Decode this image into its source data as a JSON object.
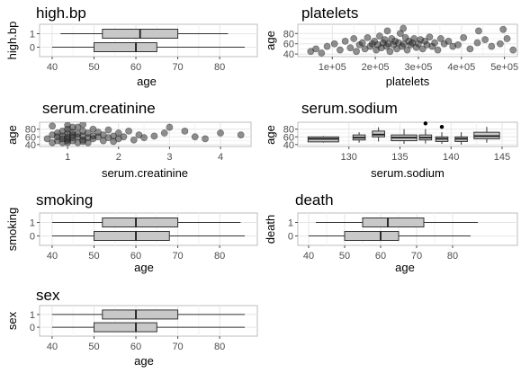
{
  "chart_data": [
    {
      "title": "high.bp",
      "type": "boxplot",
      "orientation": "horizontal",
      "xlabel": "age",
      "ylabel": "high.bp",
      "xlim": [
        37,
        89
      ],
      "xticks": [
        40,
        50,
        60,
        70,
        80
      ],
      "categories": [
        "0",
        "1"
      ],
      "boxes": [
        {
          "group": "0",
          "min": 40,
          "q1": 50,
          "median": 60,
          "q3": 65,
          "max": 86
        },
        {
          "group": "1",
          "min": 42,
          "q1": 52,
          "median": 61,
          "q3": 70,
          "max": 82
        }
      ]
    },
    {
      "title": "platelets",
      "type": "scatter",
      "xlabel": "platelets",
      "ylabel": "age",
      "xlim": [
        20000,
        530000
      ],
      "xticks": [
        100000,
        200000,
        300000,
        400000,
        500000
      ],
      "xtick_labels": [
        "1e+05",
        "2e+05",
        "3e+05",
        "4e+05",
        "5e+05"
      ],
      "ylim": [
        35,
        98
      ],
      "yticks": [
        40,
        60,
        80
      ],
      "points": [
        [
          50000,
          45
        ],
        [
          62000,
          50
        ],
        [
          75000,
          42
        ],
        [
          88000,
          55
        ],
        [
          105000,
          60
        ],
        [
          118000,
          48
        ],
        [
          130000,
          65
        ],
        [
          142000,
          52
        ],
        [
          150000,
          70
        ],
        [
          156000,
          45
        ],
        [
          163000,
          58
        ],
        [
          170000,
          62
        ],
        [
          176000,
          50
        ],
        [
          182000,
          72
        ],
        [
          188000,
          55
        ],
        [
          193000,
          60
        ],
        [
          198000,
          65
        ],
        [
          202000,
          48
        ],
        [
          206000,
          58
        ],
        [
          210000,
          75
        ],
        [
          214000,
          52
        ],
        [
          218000,
          62
        ],
        [
          222000,
          68
        ],
        [
          226000,
          55
        ],
        [
          230000,
          60
        ],
        [
          234000,
          45
        ],
        [
          238000,
          70
        ],
        [
          242000,
          58
        ],
        [
          246000,
          65
        ],
        [
          250000,
          50
        ],
        [
          254000,
          62
        ],
        [
          258000,
          80
        ],
        [
          262000,
          55
        ],
        [
          266000,
          60
        ],
        [
          270000,
          72
        ],
        [
          274000,
          48
        ],
        [
          278000,
          65
        ],
        [
          282000,
          58
        ],
        [
          286000,
          62
        ],
        [
          290000,
          70
        ],
        [
          295000,
          53
        ],
        [
          300000,
          60
        ],
        [
          305000,
          68
        ],
        [
          310000,
          50
        ],
        [
          315000,
          65
        ],
        [
          320000,
          58
        ],
        [
          326000,
          73
        ],
        [
          332000,
          55
        ],
        [
          338000,
          62
        ],
        [
          345000,
          48
        ],
        [
          352000,
          70
        ],
        [
          360000,
          60
        ],
        [
          370000,
          65
        ],
        [
          380000,
          55
        ],
        [
          392000,
          58
        ],
        [
          405000,
          72
        ],
        [
          420000,
          50
        ],
        [
          437000,
          62
        ],
        [
          455000,
          68
        ],
        [
          470000,
          55
        ],
        [
          490000,
          60
        ],
        [
          506000,
          70
        ],
        [
          520000,
          48
        ],
        [
          228000,
          85
        ],
        [
          265000,
          90
        ],
        [
          440000,
          85
        ],
        [
          497000,
          88
        ]
      ]
    },
    {
      "title": "serum.creatinine",
      "type": "scatter",
      "xlabel": "serum.creatinine",
      "ylabel": "age",
      "xlim": [
        0.45,
        4.6
      ],
      "xticks": [
        1,
        2,
        3,
        4
      ],
      "ylim": [
        35,
        98
      ],
      "yticks": [
        40,
        60,
        80
      ],
      "points": [
        [
          0.6,
          55
        ],
        [
          0.7,
          45
        ],
        [
          0.7,
          65
        ],
        [
          0.8,
          50
        ],
        [
          0.8,
          70
        ],
        [
          0.8,
          60
        ],
        [
          0.9,
          45
        ],
        [
          0.9,
          55
        ],
        [
          0.9,
          75
        ],
        [
          0.9,
          62
        ],
        [
          1.0,
          50
        ],
        [
          1.0,
          60
        ],
        [
          1.0,
          70
        ],
        [
          1.0,
          80
        ],
        [
          1.0,
          45
        ],
        [
          1.0,
          55
        ],
        [
          1.1,
          65
        ],
        [
          1.1,
          50
        ],
        [
          1.1,
          72
        ],
        [
          1.1,
          58
        ],
        [
          1.2,
          45
        ],
        [
          1.2,
          60
        ],
        [
          1.2,
          68
        ],
        [
          1.2,
          85
        ],
        [
          1.3,
          52
        ],
        [
          1.3,
          62
        ],
        [
          1.3,
          75
        ],
        [
          1.3,
          48
        ],
        [
          1.4,
          58
        ],
        [
          1.4,
          70
        ],
        [
          1.4,
          45
        ],
        [
          1.5,
          62
        ],
        [
          1.5,
          80
        ],
        [
          1.5,
          55
        ],
        [
          1.6,
          60
        ],
        [
          1.6,
          72
        ],
        [
          1.7,
          50
        ],
        [
          1.7,
          65
        ],
        [
          1.8,
          58
        ],
        [
          1.8,
          78
        ],
        [
          1.9,
          62
        ],
        [
          1.9,
          48
        ],
        [
          2.0,
          70
        ],
        [
          2.0,
          55
        ],
        [
          2.1,
          60
        ],
        [
          2.2,
          75
        ],
        [
          2.3,
          52
        ],
        [
          2.4,
          65
        ],
        [
          2.5,
          58
        ],
        [
          2.7,
          62
        ],
        [
          2.9,
          70
        ],
        [
          3.0,
          85
        ],
        [
          3.3,
          75
        ],
        [
          3.5,
          60
        ],
        [
          3.7,
          55
        ],
        [
          4.0,
          70
        ],
        [
          4.4,
          65
        ],
        [
          0.7,
          88
        ],
        [
          1.0,
          90
        ],
        [
          1.1,
          85
        ],
        [
          1.3,
          92
        ]
      ]
    },
    {
      "title": "serum.sodium",
      "type": "boxplot",
      "orientation": "vertical",
      "xlabel": "serum.sodium",
      "ylabel": "age",
      "xlim": [
        125,
        146.5
      ],
      "xticks": [
        130,
        135,
        140,
        145
      ],
      "ylim": [
        35,
        98
      ],
      "yticks": [
        40,
        60,
        80
      ],
      "boxes": [
        {
          "x": 127.5,
          "width": 3,
          "min": 45,
          "q1": 47,
          "median": 55,
          "q3": 60,
          "max": 62,
          "outliers": []
        },
        {
          "x": 131,
          "width": 1.2,
          "min": 45,
          "q1": 52,
          "median": 58,
          "q3": 65,
          "max": 72,
          "outliers": []
        },
        {
          "x": 132.9,
          "width": 1.2,
          "min": 48,
          "q1": 60,
          "median": 66,
          "q3": 75,
          "max": 85,
          "outliers": []
        },
        {
          "x": 135.4,
          "width": 2.5,
          "min": 42,
          "q1": 50,
          "median": 58,
          "q3": 65,
          "max": 80,
          "outliers": []
        },
        {
          "x": 137.5,
          "width": 1.2,
          "min": 43,
          "q1": 52,
          "median": 58,
          "q3": 65,
          "max": 80,
          "outliers": [
            95
          ]
        },
        {
          "x": 139.1,
          "width": 1.2,
          "min": 42,
          "q1": 48,
          "median": 55,
          "q3": 60,
          "max": 72,
          "outliers": [
            86
          ]
        },
        {
          "x": 141,
          "width": 1.2,
          "min": 40,
          "q1": 48,
          "median": 55,
          "q3": 60,
          "max": 72,
          "outliers": []
        },
        {
          "x": 143.5,
          "width": 2.5,
          "min": 45,
          "q1": 55,
          "median": 62,
          "q3": 72,
          "max": 86,
          "outliers": []
        }
      ]
    },
    {
      "title": "smoking",
      "type": "boxplot",
      "orientation": "horizontal",
      "xlabel": "age",
      "ylabel": "smoking",
      "xlim": [
        37,
        89
      ],
      "xticks": [
        40,
        50,
        60,
        70,
        80
      ],
      "categories": [
        "0",
        "1"
      ],
      "boxes": [
        {
          "group": "0",
          "min": 40,
          "q1": 50,
          "median": 60,
          "q3": 68,
          "max": 86
        },
        {
          "group": "1",
          "min": 40,
          "q1": 52,
          "median": 60,
          "q3": 70,
          "max": 85
        }
      ]
    },
    {
      "title": "death",
      "type": "boxplot",
      "orientation": "horizontal",
      "xlabel": "age",
      "ylabel": "death",
      "xlim": [
        37,
        98
      ],
      "xticks": [
        40,
        50,
        60,
        70,
        80
      ],
      "categories": [
        "0",
        "1"
      ],
      "boxes": [
        {
          "group": "0",
          "min": 40,
          "q1": 50,
          "median": 60,
          "q3": 65,
          "max": 85
        },
        {
          "group": "1",
          "min": 42,
          "q1": 55,
          "median": 62,
          "q3": 72,
          "max": 87
        }
      ]
    },
    {
      "title": "sex",
      "type": "boxplot",
      "orientation": "horizontal",
      "xlabel": "age",
      "ylabel": "sex",
      "xlim": [
        37,
        89
      ],
      "xticks": [
        40,
        50,
        60,
        70,
        80
      ],
      "categories": [
        "0",
        "1"
      ],
      "boxes": [
        {
          "group": "0",
          "min": 40,
          "q1": 50,
          "median": 60,
          "q3": 65,
          "max": 86
        },
        {
          "group": "1",
          "min": 40,
          "q1": 52,
          "median": 60,
          "q3": 70,
          "max": 86
        }
      ]
    }
  ],
  "style": {
    "panel_bg": "#ffffff",
    "panel_border": "#bdbdbd",
    "grid_major": "#e5e5e5",
    "grid_minor": "#f2f2f2",
    "box_fill": "#c8c8c8",
    "box_stroke": "#333333",
    "point_fill": "#333333",
    "point_opacity": 0.55,
    "tick_color": "#4d4d4d"
  }
}
